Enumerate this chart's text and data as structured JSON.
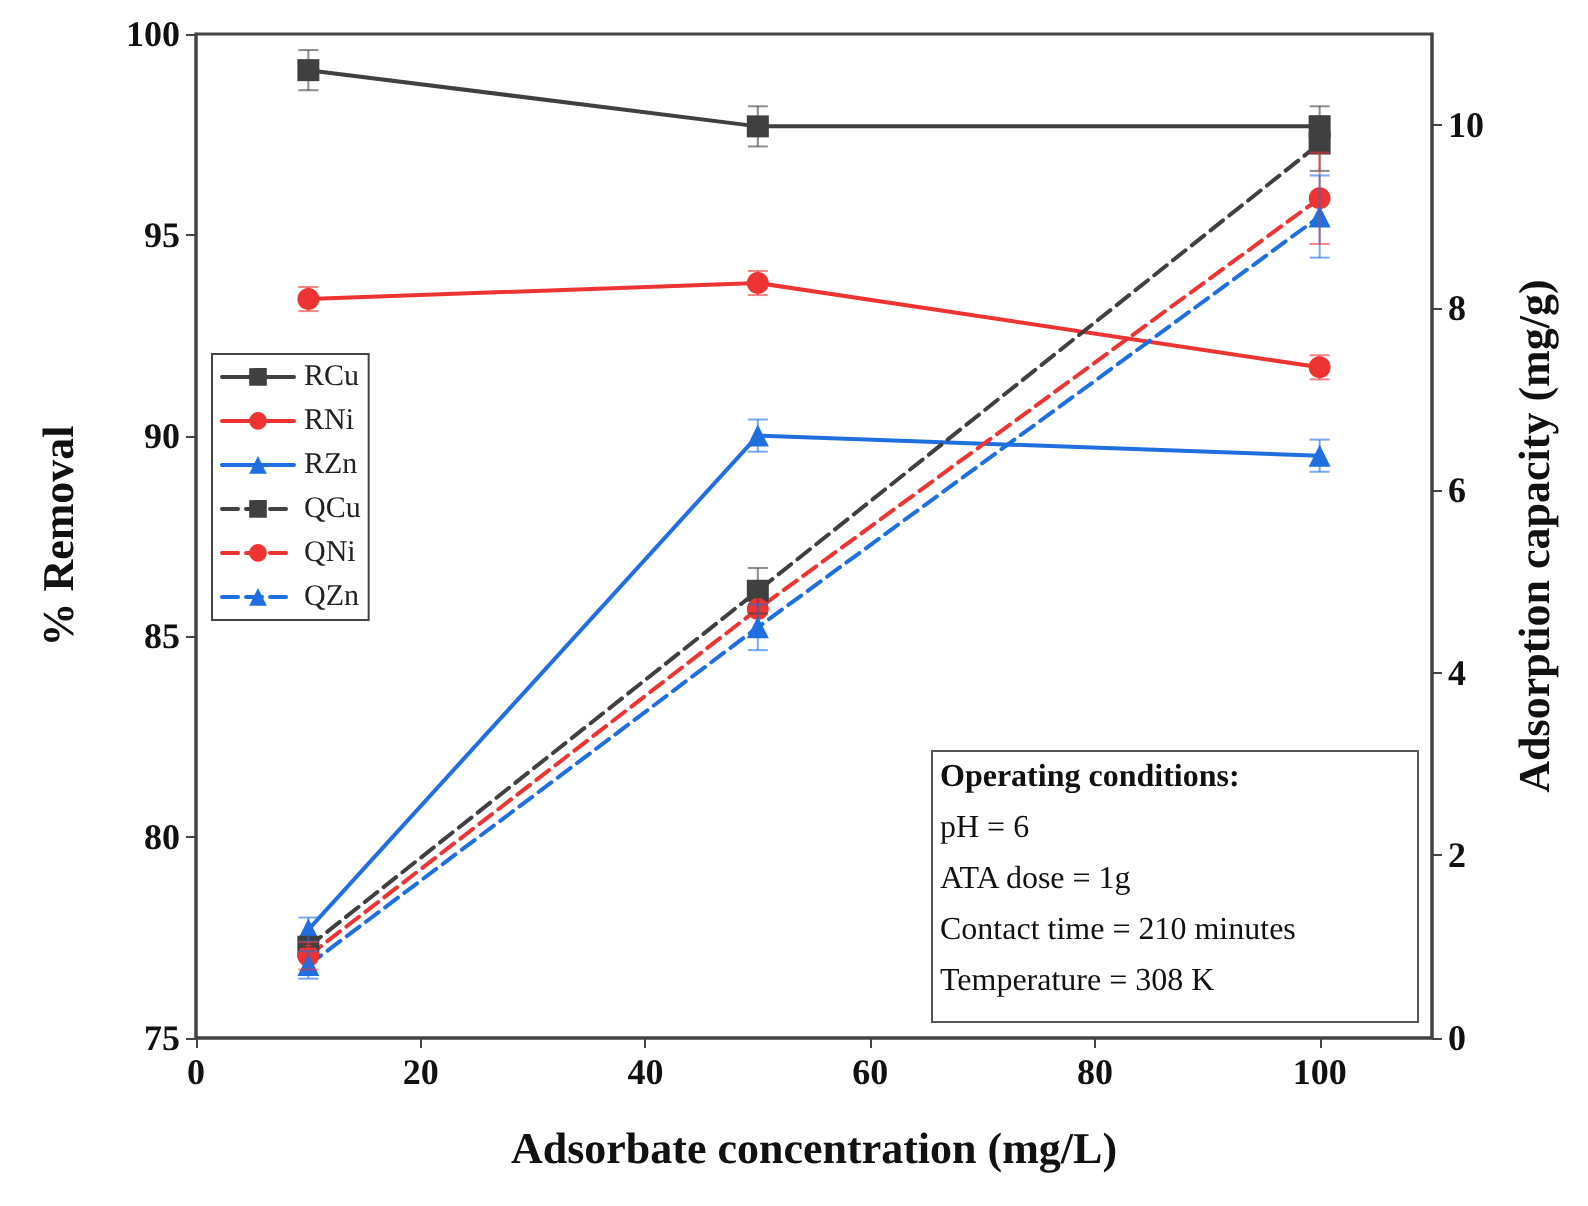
{
  "chart_data": {
    "type": "line",
    "xlabel": "Adsorbate concentration (mg/L)",
    "ylabel": "% Removal",
    "y2label": "Adsorption capacity (mg/g)",
    "x": [
      10,
      50,
      100
    ],
    "xlim": [
      0,
      110
    ],
    "xticks": [
      0,
      20,
      40,
      60,
      80,
      100
    ],
    "ylim": [
      75,
      100
    ],
    "yticks": [
      75,
      80,
      85,
      90,
      95,
      100
    ],
    "y2lim": [
      0,
      11
    ],
    "y2ticks": [
      0,
      2,
      4,
      6,
      8,
      10
    ],
    "grid": false,
    "legend": "left",
    "series": [
      {
        "name": "RCu",
        "color": "#404040",
        "marker": "square",
        "line_style": "solid",
        "values": [
          99.1,
          97.7,
          97.7
        ],
        "errors": [
          0.5,
          0.5,
          0.5
        ]
      },
      {
        "name": "RNi",
        "color": "#ee3333",
        "marker": "circle",
        "line_style": "solid",
        "values": [
          93.4,
          93.8,
          91.7
        ],
        "errors": [
          0.3,
          0.3,
          0.3
        ]
      },
      {
        "name": "RZn",
        "color": "#1f6fe0",
        "marker": "triangle",
        "line_style": "solid",
        "values": [
          77.7,
          90.0,
          89.5
        ],
        "errors": [
          0.3,
          0.4,
          0.4
        ]
      },
      {
        "name": "QCu",
        "color": "#404040",
        "marker": "square",
        "line_style": "dashed",
        "axis": "y2",
        "values": [
          1.0,
          4.9,
          9.8
        ],
        "errors": [
          null,
          0.25,
          0.3
        ]
      },
      {
        "name": "QNi",
        "color": "#ee3333",
        "marker": "circle",
        "line_style": "dashed",
        "axis": "y2",
        "values": [
          0.9,
          4.7,
          9.2
        ],
        "errors": [
          0.15,
          null,
          0.5
        ]
      },
      {
        "name": "QZn",
        "color": "#1f6fe0",
        "marker": "triangle",
        "line_style": "dashed",
        "axis": "y2",
        "values": [
          0.8,
          4.5,
          9.0
        ],
        "errors": [
          0.15,
          0.25,
          0.45
        ]
      }
    ],
    "annotations": [
      "Operating conditions:",
      "pH = 6",
      "ATA dose = 1g",
      "Contact time = 210 minutes",
      "Temperature = 308 K"
    ]
  }
}
